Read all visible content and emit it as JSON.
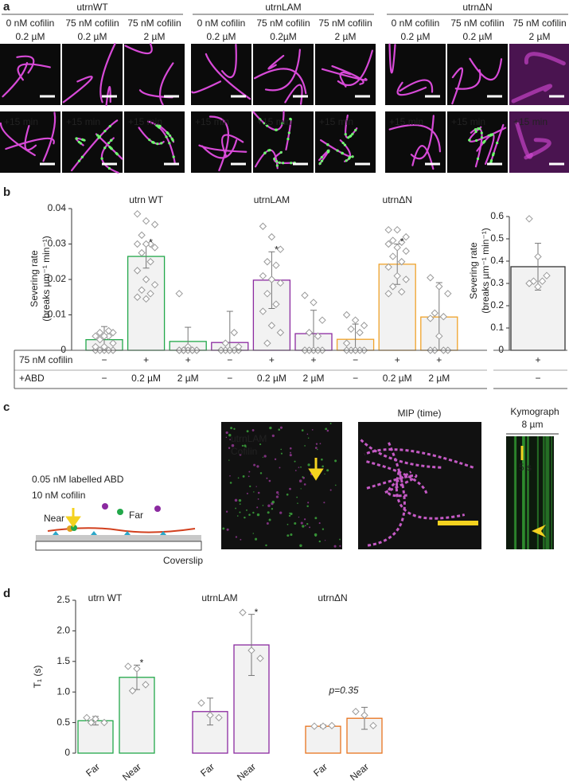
{
  "panels": {
    "a": {
      "letter": "a",
      "timepoint": "+15 min",
      "groups": [
        {
          "name": "utrnWT",
          "columns": [
            {
              "cofilin": "0 nM cofilin",
              "abd": "0.2 µM"
            },
            {
              "cofilin": "75 nM cofilin",
              "abd": "0.2 µM"
            },
            {
              "cofilin": "75 nM cofilin",
              "abd": "2 µM"
            }
          ]
        },
        {
          "name": "utrnLAM",
          "columns": [
            {
              "cofilin": "0 nM cofilin",
              "abd": "0.2 µM"
            },
            {
              "cofilin": "75 nM cofilin",
              "abd": "0.2µM"
            },
            {
              "cofilin": "75 nM cofilin",
              "abd": "2 µM"
            }
          ]
        },
        {
          "name": "utrnΔN",
          "columns": [
            {
              "cofilin": "0 nM cofilin",
              "abd": "0.2 µM"
            },
            {
              "cofilin": "75 nM cofilin",
              "abd": "0.2 µM"
            },
            {
              "cofilin": "75 nM cofilin",
              "abd": "2 µM"
            }
          ]
        }
      ]
    },
    "b": {
      "letter": "b"
    },
    "c": {
      "letter": "c",
      "schematic": {
        "abd": "0.05 nM labelled ABD",
        "cofilin": "10 nM cofilin",
        "near": "Near",
        "far": "Far",
        "coverslip": "Coverslip"
      },
      "image_labels": {
        "abd": "utrnLAM",
        "cofilin": "Cofilin",
        "mip": "MIP (time)",
        "kymograph": "Kymograph",
        "width": "8 µm",
        "time": "5 s"
      }
    },
    "d": {
      "letter": "d"
    }
  },
  "chart_data": [
    {
      "type": "bar",
      "ylabel": [
        "Severing rate",
        "(breaks µm⁻¹ min⁻¹)"
      ],
      "ylim": [
        0,
        0.04
      ],
      "yticks": [
        0,
        0.01,
        0.02,
        0.03,
        0.04
      ],
      "series": [
        {
          "name": "utrn WT",
          "color": "#22a84a",
          "values": [
            0.003,
            0.0265,
            0.0025
          ],
          "errors": [
            0.0037,
            0.0033,
            0.004
          ],
          "significance": [
            null,
            "*",
            null
          ],
          "points": [
            [
              0,
              0,
              0,
              0,
              0,
              0.001,
              0.001,
              0.002,
              0.003,
              0.004,
              0.004,
              0.004,
              0.005,
              0.005,
              0.0055
            ],
            [
              0.0385,
              0.0365,
              0.0355,
              0.0325,
              0.03,
              0.03,
              0.03,
              0.029,
              0.0275,
              0.025,
              0.0225,
              0.02,
              0.0185,
              0.017,
              0.016,
              0.015,
              0.0145
            ],
            [
              0.016,
              0.001,
              0,
              0,
              0,
              0,
              0,
              0,
              0,
              0,
              0
            ]
          ]
        },
        {
          "name": "utrnLAM",
          "color": "#8b2aa0",
          "values": [
            0.0022,
            0.0198,
            0.0047
          ],
          "errors": [
            0.0088,
            0.008,
            0.0066
          ],
          "significance": [
            null,
            "*",
            null
          ],
          "points": [
            [
              0,
              0,
              0,
              0,
              0,
              0,
              0,
              0.001,
              0.002,
              0.005
            ],
            [
              0.035,
              0.032,
              0.0285,
              0.025,
              0.024,
              0.021,
              0.02,
              0.019,
              0.016,
              0.013,
              0.011,
              0.007,
              0.005,
              0.002
            ],
            [
              0.0155,
              0.0135,
              0.0085,
              0.005,
              0.004,
              0,
              0,
              0,
              0,
              0,
              0
            ]
          ]
        },
        {
          "name": "utrnΔN",
          "color": "#f0a32a",
          "values": [
            0.0031,
            0.0243,
            0.0094
          ],
          "errors": [
            0.0043,
            0.0057,
            0.0097
          ],
          "significance": [
            null,
            "*",
            null
          ],
          "points": [
            [
              0.01,
              0.0085,
              0.007,
              0.006,
              0.005,
              0.002,
              0,
              0,
              0,
              0,
              0,
              0
            ],
            [
              0.034,
              0.034,
              0.032,
              0.031,
              0.0305,
              0.03,
              0.029,
              0.028,
              0.0265,
              0.025,
              0.0235,
              0.021,
              0.02,
              0.018,
              0.0165,
              0.016
            ],
            [
              0.0205,
              0.018,
              0.016,
              0.0105,
              0.0095,
              0.009,
              0.004,
              0,
              0,
              0,
              0
            ]
          ]
        }
      ],
      "table": {
        "rows": [
          {
            "label": "75 nM cofilin",
            "cells": [
              "−",
              "+",
              "+",
              "−",
              "+",
              "+",
              "−",
              "+",
              "+"
            ]
          },
          {
            "label": "+ABD",
            "cells": [
              "−",
              "0.2 µM",
              "2 µM",
              "−",
              "0.2 µM",
              "2 µM",
              "−",
              "0.2 µM",
              "2 µM"
            ]
          }
        ]
      }
    },
    {
      "type": "bar",
      "ylabel": [
        "Severing rate",
        "(breaks µm⁻¹ min⁻¹)"
      ],
      "ylim": [
        0,
        0.6
      ],
      "yticks": [
        0,
        0.1,
        0.2,
        0.3,
        0.4,
        0.5,
        0.6
      ],
      "series": [
        {
          "color": "#333333",
          "values": [
            0.375
          ],
          "errors": [
            0.105
          ],
          "points": [
            [
              0.59,
              0.42,
              0.335,
              0.31,
              0.31,
              0.3,
              0.285
            ]
          ]
        }
      ],
      "table": {
        "rows": [
          {
            "cells": [
              "+"
            ]
          },
          {
            "cells": [
              "−"
            ]
          }
        ]
      }
    },
    {
      "type": "bar",
      "ylabel": "T₁ (s)",
      "ylim": [
        0,
        2.5
      ],
      "yticks": [
        0,
        0.5,
        {
          "value": 1,
          "label": "1.0"
        },
        1.5,
        {
          "value": 2,
          "label": "2.0"
        },
        2.5
      ],
      "categories": [
        "Far",
        "Near"
      ],
      "series": [
        {
          "name": "utrn WT",
          "color": "#22a84a",
          "values": [
            0.53,
            1.24
          ],
          "errors": [
            0.07,
            0.2
          ],
          "significance": [
            null,
            "*"
          ],
          "points": [
            [
              0.58,
              0.56,
              0.5,
              0.5
            ],
            [
              1.42,
              1.38,
              1.12,
              1.02
            ]
          ]
        },
        {
          "name": "utrnLAM",
          "color": "#8b2aa0",
          "values": [
            0.68,
            1.77
          ],
          "errors": [
            0.22,
            0.5
          ],
          "significance": [
            null,
            "*"
          ],
          "points": [
            [
              0.82,
              0.62,
              0.58
            ],
            [
              2.3,
              1.68,
              1.55
            ]
          ]
        },
        {
          "name": "utrnΔN",
          "color": "#e8731e",
          "values": [
            0.44,
            0.57
          ],
          "errors": [
            0.02,
            0.18
          ],
          "significance": [
            null,
            null
          ],
          "points": [
            [
              0.44,
              0.44,
              0.45
            ],
            [
              0.68,
              0.62,
              0.45
            ]
          ]
        }
      ],
      "annotation": "p=0.35"
    }
  ]
}
